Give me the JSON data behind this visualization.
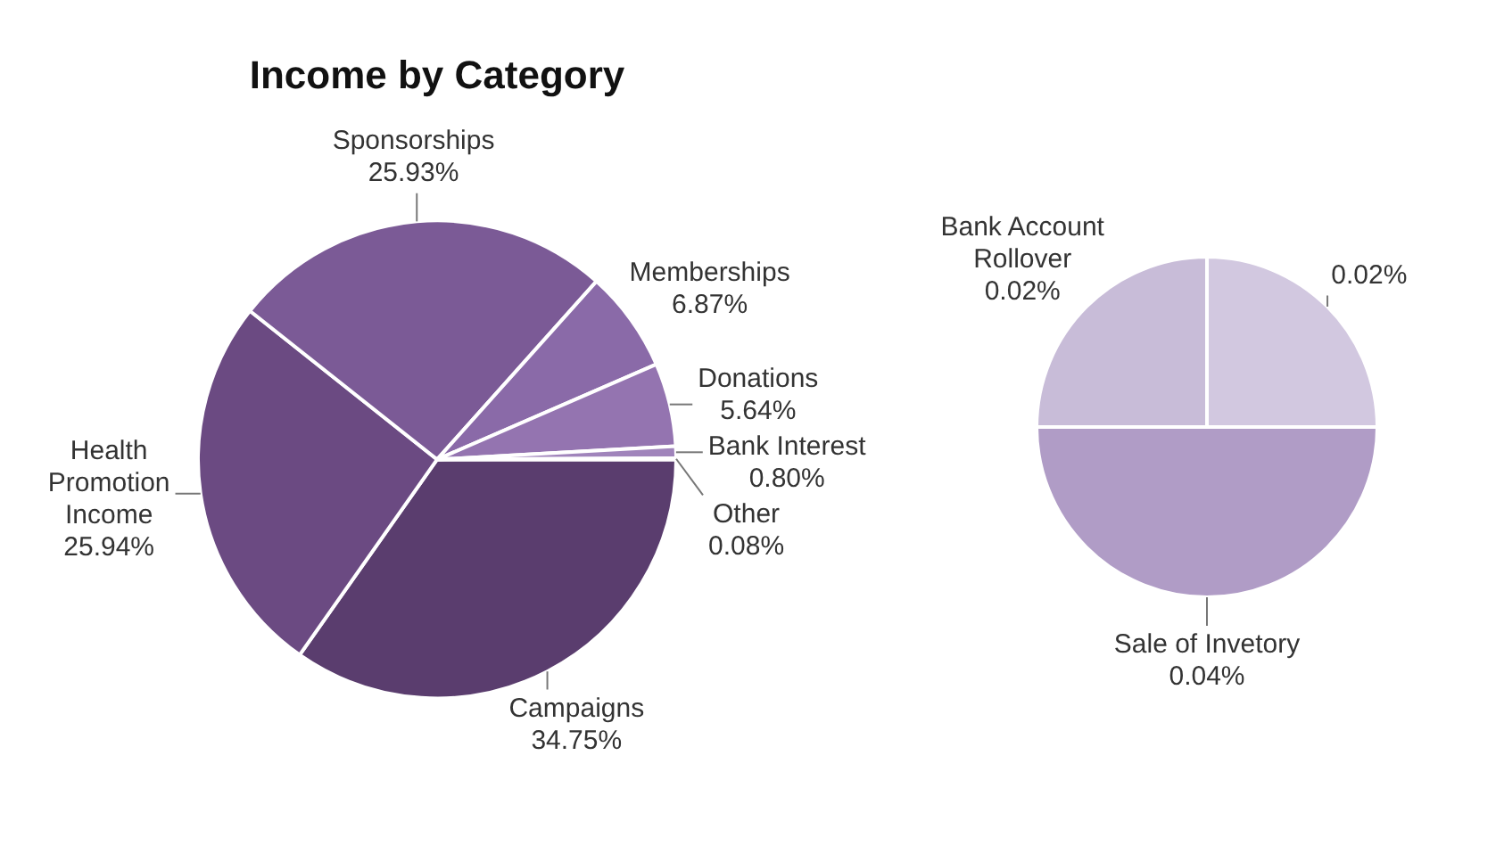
{
  "chart_data": [
    {
      "type": "pie",
      "title": "Income by Category",
      "categories": [
        "Campaigns",
        "Health Promotion Income",
        "Sponsorships",
        "Memberships",
        "Donations",
        "Bank Interest",
        "Other"
      ],
      "values": [
        34.75,
        25.94,
        25.93,
        6.87,
        5.64,
        0.8,
        0.08
      ],
      "value_labels": [
        "34.75%",
        "25.94%",
        "25.93%",
        "6.87%",
        "5.64%",
        "0.80%",
        "0.08%"
      ],
      "colors": [
        "#5a3d6e",
        "#6b4a82",
        "#7b5a96",
        "#8a6aa8",
        "#9474b0",
        "#a084bb",
        "#b8a4cc"
      ],
      "legend": false
    },
    {
      "type": "pie",
      "categories": [
        "Sale of Invetory",
        "Bank Account Rollover",
        null
      ],
      "values": [
        0.04,
        0.02,
        0.02
      ],
      "value_labels": [
        "0.04%",
        "0.02%",
        "0.02%"
      ],
      "colors": [
        "#b09cc6",
        "#c8bcd8",
        "#d2c8e0"
      ],
      "legend": false
    }
  ]
}
